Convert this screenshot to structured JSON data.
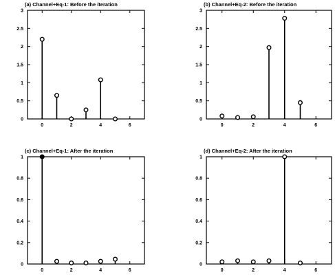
{
  "chart_data": [
    {
      "type": "stem",
      "title": "(a) Channel+Eq-1: Before the iteration",
      "x": [
        0,
        1,
        2,
        3,
        4,
        5
      ],
      "values": [
        2.2,
        0.65,
        0.0,
        0.25,
        1.08,
        0.0
      ],
      "xlim": [
        -1,
        7
      ],
      "ylim": [
        0,
        3
      ],
      "xticks": [
        "0",
        "2",
        "4",
        "6"
      ],
      "yticks": [
        "0",
        "0.5",
        "1",
        "1.5",
        "2",
        "2.5",
        "3"
      ],
      "grid": false
    },
    {
      "type": "stem",
      "title": "(b) Channel+Eq-2: Before the iteration",
      "x": [
        0,
        1,
        2,
        3,
        4,
        5
      ],
      "values": [
        0.08,
        0.04,
        0.06,
        1.97,
        2.78,
        0.45
      ],
      "xlim": [
        -1,
        7
      ],
      "ylim": [
        0,
        3
      ],
      "xticks": [
        "0",
        "2",
        "4",
        "6"
      ],
      "yticks": [
        "0",
        "0.5",
        "1",
        "1.5",
        "2",
        "2.5",
        "3"
      ],
      "grid": false
    },
    {
      "type": "stem",
      "title": "(c) Channel+Eq-1: After the iteration",
      "x": [
        0,
        1,
        2,
        3,
        4,
        5
      ],
      "values": [
        1.0,
        0.025,
        0.01,
        0.01,
        0.025,
        0.045
      ],
      "xlim": [
        -1,
        7
      ],
      "ylim": [
        0,
        1
      ],
      "xticks": [
        "0",
        "2",
        "4",
        "6"
      ],
      "yticks": [
        "0",
        "0.2",
        "0.4",
        "0.6",
        "0.8",
        "1"
      ],
      "grid": false
    },
    {
      "type": "stem",
      "title": "(d) Channel+Eq-2: After the iteration",
      "x": [
        0,
        1,
        2,
        3,
        4,
        5
      ],
      "values": [
        0.02,
        0.03,
        0.02,
        0.03,
        1.0,
        0.01
      ],
      "xlim": [
        -1,
        7
      ],
      "ylim": [
        0,
        1
      ],
      "xticks": [
        "0",
        "2",
        "4",
        "6"
      ],
      "yticks": [
        "0",
        "0.2",
        "0.4",
        "0.6",
        "0.8",
        "1"
      ],
      "grid": false
    }
  ]
}
